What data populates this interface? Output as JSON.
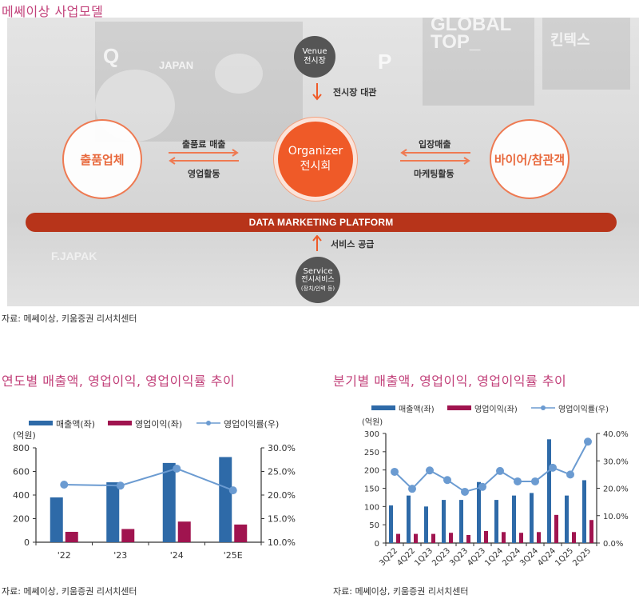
{
  "section1": {
    "title": "메쎄이상 사업모델",
    "source": "자료: 메쎄이상, 키움증권 리서치센터",
    "diagram": {
      "venue": {
        "en": "Venue",
        "ko": "전시장"
      },
      "venue_arrow_label": "전시장 대관",
      "organizer": {
        "en": "Organizer",
        "ko": "전시회"
      },
      "exhibitor": "출품업체",
      "buyer": "바이어/참관객",
      "left_top_label": "출품료 매출",
      "left_bottom_label": "영업활동",
      "right_top_label": "입장매출",
      "right_bottom_label": "마케팅활동",
      "platform": "DATA MARKETING PLATFORM",
      "service_arrow_label": "서비스 공급",
      "service": {
        "en": "Service",
        "ko": "전시서비스",
        "sub": "(장치/인력 등)"
      },
      "accent_color": "#ef5a28",
      "platform_color": "#b7341a"
    }
  },
  "chart_data": [
    {
      "type": "bar",
      "title": "연도별 매출액, 영업이익, 영업이익률 추이",
      "categories": [
        "'22",
        "'23",
        "'24",
        "'25E"
      ],
      "series": [
        {
          "name": "매출액(좌)",
          "type": "bar",
          "axis": "left",
          "color": "#2e6aa8",
          "values": [
            380,
            508,
            672,
            722
          ]
        },
        {
          "name": "영업이익(좌)",
          "type": "bar",
          "axis": "left",
          "color": "#a0144f",
          "values": [
            88,
            112,
            175,
            150
          ]
        },
        {
          "name": "영업이익률(우)",
          "type": "line",
          "axis": "right",
          "color": "#6b9bd1",
          "values": [
            22.2,
            22.0,
            25.6,
            21.0
          ]
        }
      ],
      "ylabel": "(억원)",
      "ylim": [
        0,
        800
      ],
      "yticks": [
        "0",
        "200",
        "400",
        "600",
        "800"
      ],
      "y2lim": [
        10.0,
        30.0
      ],
      "y2ticks": [
        "10.0%",
        "15.0%",
        "20.0%",
        "25.0%",
        "30.0%"
      ],
      "legend_position": "top",
      "grid": false,
      "source": "자료: 메쎄이상, 키움증권 리서치센터"
    },
    {
      "type": "bar",
      "title": "분기별 매출액, 영업이익, 영업이익률 추이",
      "categories": [
        "3Q22",
        "4Q22",
        "1Q23",
        "2Q23",
        "3Q23",
        "4Q23",
        "1Q24",
        "2Q24",
        "3Q24",
        "4Q24",
        "1Q25",
        "2Q25"
      ],
      "series": [
        {
          "name": "매출액(좌)",
          "type": "bar",
          "axis": "left",
          "color": "#2e6aa8",
          "values": [
            103,
            130,
            100,
            118,
            118,
            167,
            118,
            130,
            137,
            284,
            130,
            172
          ]
        },
        {
          "name": "영업이익(좌)",
          "type": "bar",
          "axis": "left",
          "color": "#a0144f",
          "values": [
            25,
            25,
            25,
            28,
            22,
            33,
            30,
            28,
            30,
            77,
            30,
            63
          ]
        },
        {
          "name": "영업이익률(우)",
          "type": "line",
          "axis": "right",
          "color": "#6b9bd1",
          "values": [
            26.0,
            19.8,
            26.5,
            23.0,
            18.7,
            20.5,
            26.3,
            22.5,
            22.5,
            27.5,
            25.0,
            37.0
          ]
        }
      ],
      "ylabel": "(억원)",
      "ylim": [
        0,
        300
      ],
      "yticks": [
        "0",
        "50",
        "100",
        "150",
        "200",
        "250",
        "300"
      ],
      "y2lim": [
        0.0,
        40.0
      ],
      "y2ticks": [
        "0.0%",
        "10.0%",
        "20.0%",
        "30.0%",
        "40.0%"
      ],
      "legend_position": "top",
      "grid": false,
      "source": "자료: 메쎄이상, 키움증권 리서치센터"
    }
  ]
}
